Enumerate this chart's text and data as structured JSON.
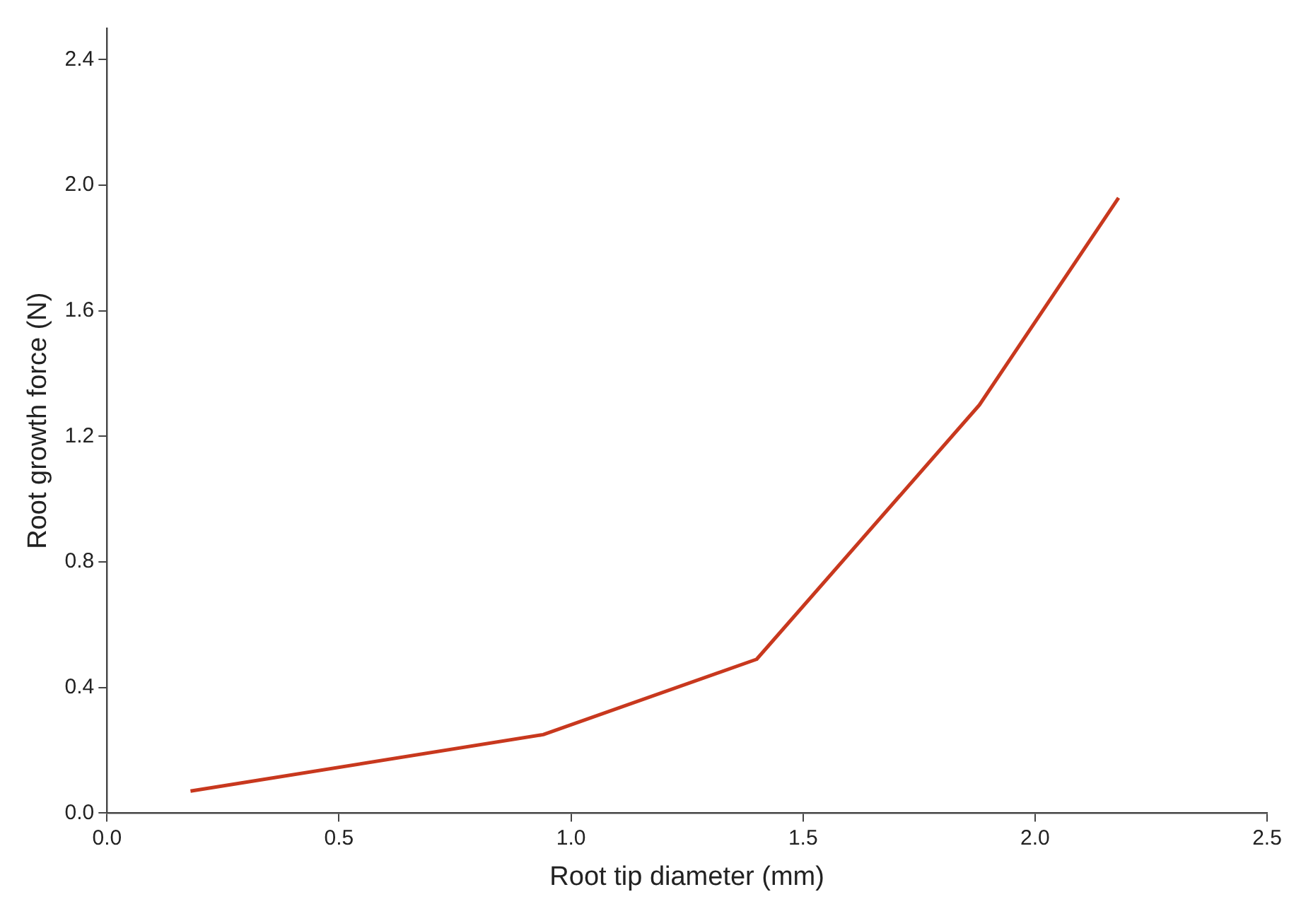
{
  "chart_data": {
    "type": "line",
    "xlabel": "Root tip diameter (mm)",
    "ylabel": "Root growth force (N)",
    "x": [
      0.18,
      0.94,
      1.4,
      1.88,
      2.18
    ],
    "series": [
      {
        "color": "#c8381e",
        "values": [
          0.07,
          0.25,
          0.49,
          1.3,
          1.96
        ]
      }
    ],
    "xlim": [
      0,
      2.5
    ],
    "xticks": [
      {
        "value": 0,
        "label": "0.0"
      },
      0.5,
      {
        "value": 1,
        "label": "1.0"
      },
      1.5,
      {
        "value": 2,
        "label": "2.0"
      },
      2.5
    ],
    "ylim": [
      0,
      2.5
    ],
    "yticks": [
      {
        "value": 0,
        "label": "0.0"
      },
      0.4,
      0.8,
      1.2,
      1.6,
      {
        "value": 2,
        "label": "2.0"
      },
      2.4
    ],
    "grid": false,
    "legend": false,
    "marker": "none",
    "line_style": "solid"
  }
}
